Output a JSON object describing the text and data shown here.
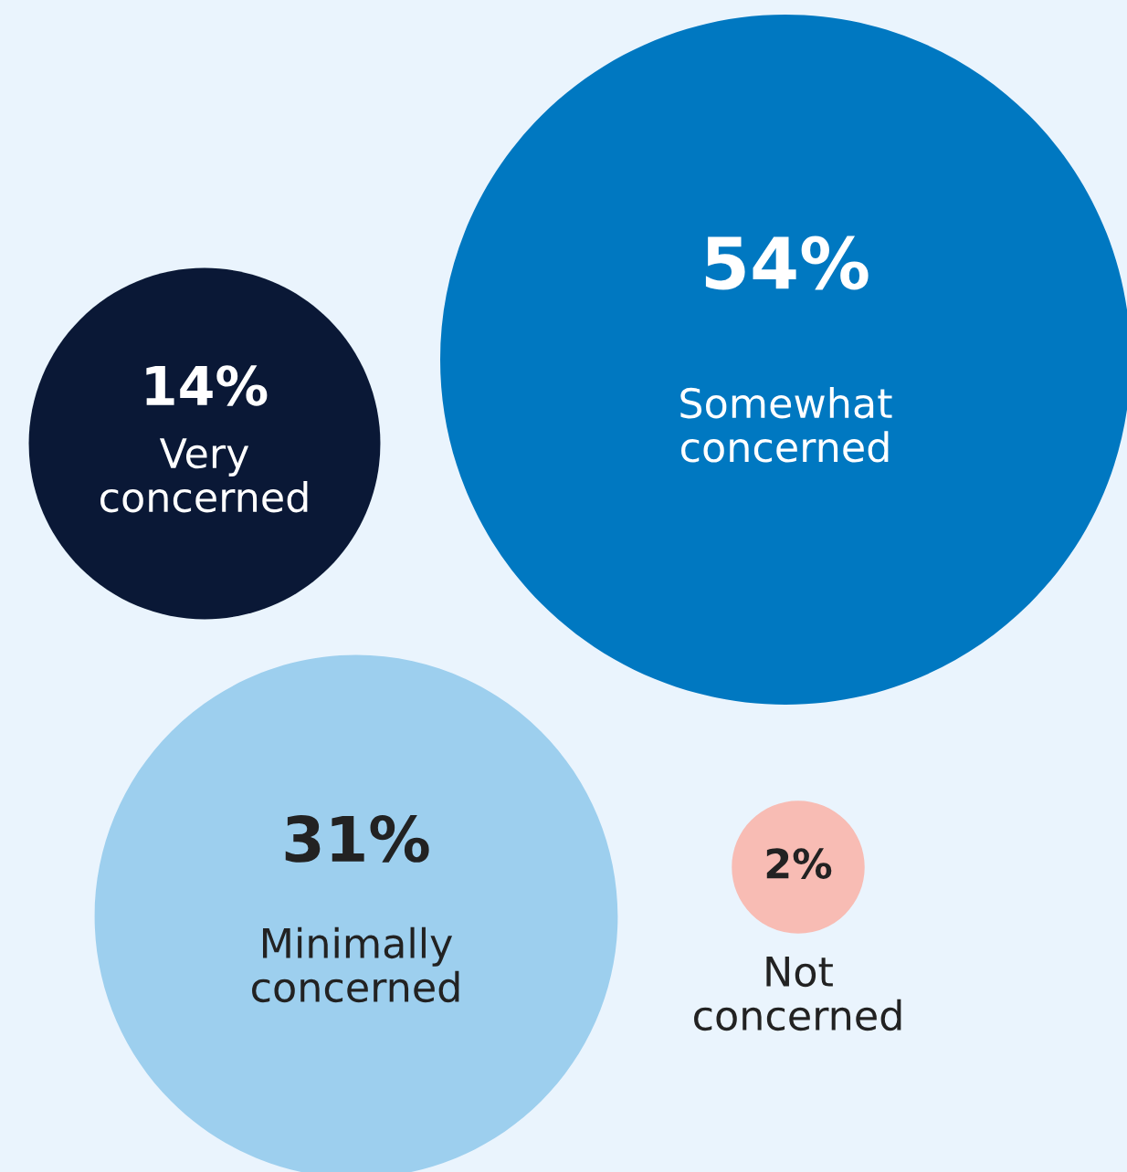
{
  "chart_data": {
    "type": "other",
    "categories": [
      "Very concerned",
      "Somewhat concerned",
      "Minimally concerned",
      "Not concerned"
    ],
    "values": [
      14,
      54,
      31,
      2
    ],
    "value_labels": [
      "14%",
      "54%",
      "31%",
      "2%"
    ],
    "colors": [
      "#0a1836",
      "#0078c1",
      "#9dcfee",
      "#f8bcb4"
    ]
  }
}
